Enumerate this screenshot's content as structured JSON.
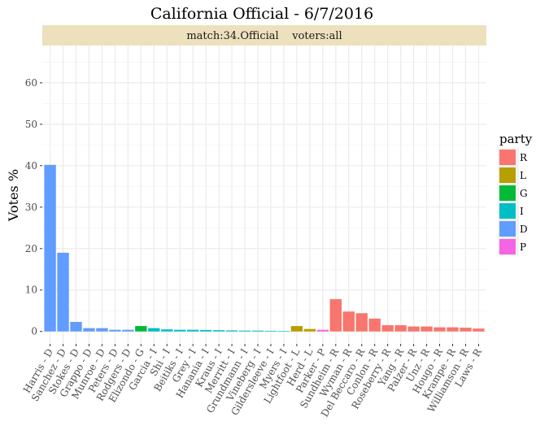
{
  "chart_data": {
    "type": "bar",
    "title": "California Official - 6/7/2016",
    "facet_strip": "match:34.Official    voters:all",
    "xlabel": "",
    "ylabel": "Votes %",
    "ylim": [
      -3,
      69
    ],
    "yticks": [
      0,
      10,
      20,
      30,
      40,
      50,
      60
    ],
    "grid": true,
    "legend_placement": "right",
    "legend": {
      "title": "party",
      "entries": [
        {
          "key": "R",
          "color": "#F8766D"
        },
        {
          "key": "L",
          "color": "#B79F00"
        },
        {
          "key": "G",
          "color": "#00BA38"
        },
        {
          "key": "I",
          "color": "#00BFC4"
        },
        {
          "key": "D",
          "color": "#619CFF"
        },
        {
          "key": "P",
          "color": "#F564E3"
        }
      ]
    },
    "categories": [
      "Harris - D",
      "Sanchez - D",
      "Stokes - D",
      "Grappo - D",
      "Munroe - D",
      "Peters - D",
      "Rodgers - D",
      "Elizondo - G",
      "Garcia - I",
      "Shi - I",
      "Beitiks - I",
      "Grey - I",
      "Hanania - I",
      "Kraus - I",
      "Merritt - I",
      "Grundmann - I",
      "Vineberg - I",
      "Gildersleeve - I",
      "Myers - I",
      "Lightfoot - L",
      "Herd - L",
      "Parker - P",
      "Sundheim - R",
      "Wyman - R",
      "Del Beccaro - R",
      "Conlon - R",
      "Roseberry - R",
      "Yang - R",
      "Palzer - R",
      "Unz - R",
      "Hougo - R",
      "Krampe - R",
      "Williamson - R",
      "Laws - R"
    ],
    "parties": [
      "D",
      "D",
      "D",
      "D",
      "D",
      "D",
      "D",
      "G",
      "I",
      "I",
      "I",
      "I",
      "I",
      "I",
      "I",
      "I",
      "I",
      "I",
      "I",
      "L",
      "L",
      "P",
      "R",
      "R",
      "R",
      "R",
      "R",
      "R",
      "R",
      "R",
      "R",
      "R",
      "R",
      "R"
    ],
    "values": [
      40.2,
      19.0,
      2.3,
      0.8,
      0.8,
      0.4,
      0.4,
      1.3,
      0.8,
      0.5,
      0.4,
      0.4,
      0.35,
      0.3,
      0.25,
      0.2,
      0.2,
      0.15,
      0.1,
      1.3,
      0.6,
      0.4,
      7.8,
      4.8,
      4.4,
      3.1,
      1.5,
      1.5,
      1.2,
      1.2,
      1.0,
      1.0,
      0.9,
      0.7
    ]
  }
}
